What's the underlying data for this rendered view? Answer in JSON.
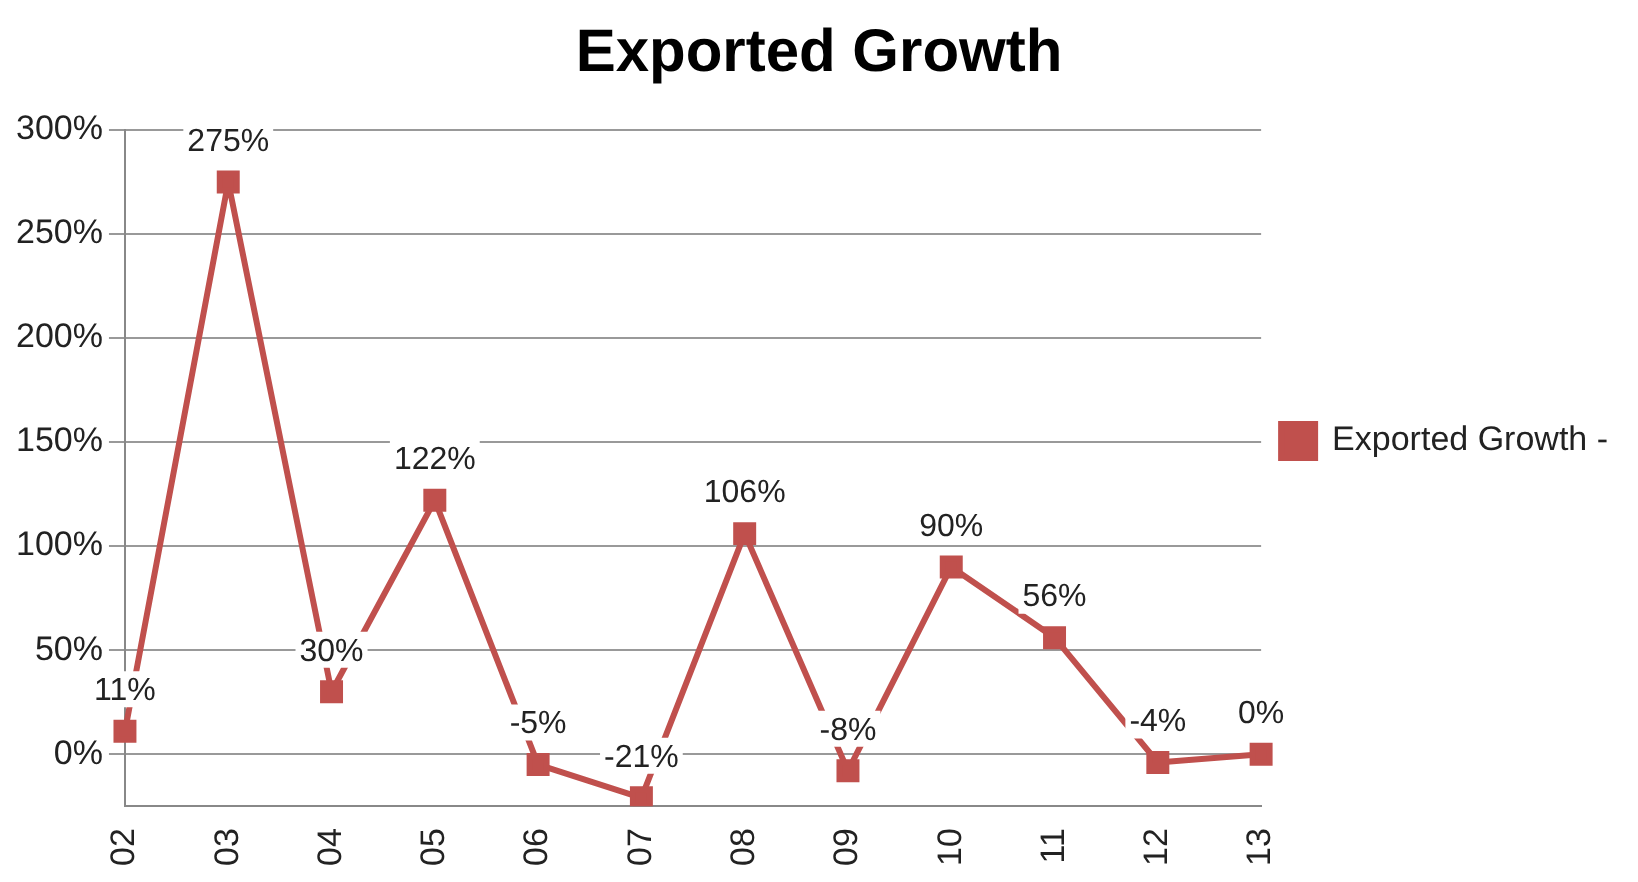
{
  "chart_data": {
    "type": "line",
    "title": "Exported Growth",
    "categories": [
      "02",
      "03",
      "04",
      "05",
      "06",
      "07",
      "08",
      "09",
      "10",
      "11",
      "12",
      "13"
    ],
    "series": [
      {
        "name": "Exported Growth -",
        "color": "#c0504d",
        "values": [
          11,
          275,
          30,
          122,
          -5,
          -21,
          106,
          -8,
          90,
          56,
          -4,
          0
        ],
        "value_labels": [
          "11%",
          "275%",
          "30%",
          "122%",
          "-5%",
          "-21%",
          "106%",
          "-8%",
          "90%",
          "56%",
          "-4%",
          "0%"
        ]
      }
    ],
    "ylim": [
      -25,
      300
    ],
    "yticks": [
      {
        "value": 0,
        "label": "0%"
      },
      {
        "value": 50,
        "label": "50%"
      },
      {
        "value": 100,
        "label": "100%"
      },
      {
        "value": 150,
        "label": "150%"
      },
      {
        "value": 200,
        "label": "200%"
      },
      {
        "value": 250,
        "label": "250%"
      },
      {
        "value": 300,
        "label": "300%"
      }
    ],
    "grid": "y",
    "legend": "right",
    "marker": "square",
    "line_style": "solid"
  }
}
